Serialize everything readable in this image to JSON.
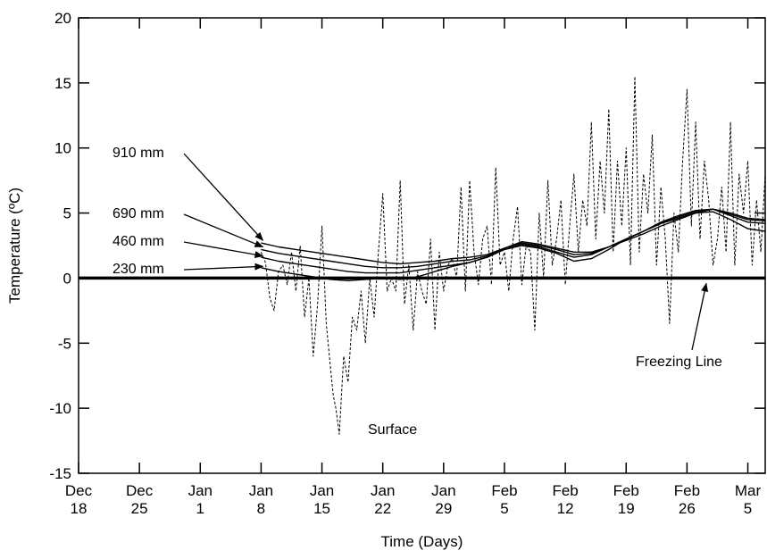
{
  "chart_data": {
    "type": "line",
    "title": "",
    "xlabel": "Time (Days)",
    "ylabel": "Temperature (ºC)",
    "ylim": [
      -15,
      20
    ],
    "yticks": [
      -15,
      -10,
      -5,
      0,
      5,
      10,
      15,
      20
    ],
    "xticks": [
      {
        "day": 0,
        "line1": "Dec",
        "line2": "18"
      },
      {
        "day": 7,
        "line1": "Dec",
        "line2": "25"
      },
      {
        "day": 14,
        "line1": "Jan",
        "line2": "1"
      },
      {
        "day": 21,
        "line1": "Jan",
        "line2": "8"
      },
      {
        "day": 28,
        "line1": "Jan",
        "line2": "15"
      },
      {
        "day": 35,
        "line1": "Jan",
        "line2": "22"
      },
      {
        "day": 42,
        "line1": "Jan",
        "line2": "29"
      },
      {
        "day": 49,
        "line1": "Feb",
        "line2": "5"
      },
      {
        "day": 56,
        "line1": "Feb",
        "line2": "12"
      },
      {
        "day": 63,
        "line1": "Feb",
        "line2": "19"
      },
      {
        "day": 70,
        "line1": "Feb",
        "line2": "26"
      },
      {
        "day": 77,
        "line1": "Mar",
        "line2": "5"
      }
    ],
    "xlim": [
      0,
      79
    ],
    "grid": false,
    "series": [
      {
        "name": "Surface",
        "dashed": true,
        "x": [
          21,
          21.5,
          22,
          22.5,
          23,
          23.5,
          24,
          24.5,
          25,
          25.5,
          26,
          26.5,
          27,
          27.5,
          28,
          28.5,
          29,
          29.3,
          29.6,
          30,
          30.5,
          31,
          31.5,
          32,
          32.5,
          33,
          33.5,
          34,
          34.5,
          35,
          35.5,
          36,
          36.5,
          37,
          37.5,
          38,
          38.5,
          39,
          39.5,
          40,
          40.5,
          41,
          41.5,
          42,
          42.5,
          43,
          43.5,
          44,
          44.5,
          45,
          45.5,
          46,
          46.5,
          47,
          47.5,
          48,
          48.5,
          49,
          49.5,
          50,
          50.5,
          51,
          51.5,
          52,
          52.5,
          53,
          53.5,
          54,
          54.5,
          55,
          55.5,
          56,
          56.5,
          57,
          57.5,
          58,
          58.5,
          59,
          59.5,
          60,
          60.5,
          61,
          61.5,
          62,
          62.5,
          63,
          63.5,
          64,
          64.5,
          65,
          65.5,
          66,
          66.5,
          67,
          67.5,
          68,
          68.5,
          69,
          69.5,
          70,
          70.5,
          71,
          71.5,
          72,
          72.5,
          73,
          73.5,
          74,
          74.5,
          75,
          75.5,
          76,
          76.5,
          77,
          77.5,
          78,
          78.5,
          79
        ],
        "y": [
          2,
          1.2,
          -1.5,
          -2.5,
          0.5,
          1,
          -0.5,
          2,
          -1,
          2.5,
          -3,
          0,
          -6,
          -2,
          4,
          -3.5,
          -7,
          -9,
          -10,
          -12,
          -6,
          -8,
          -3,
          -4,
          -1,
          -5,
          0,
          -3,
          2,
          6.5,
          -1,
          0,
          -1,
          7.5,
          -2,
          1,
          -4,
          0.5,
          -1,
          -2,
          3,
          -4,
          2,
          -1,
          1,
          1.5,
          0,
          7,
          -1,
          7.5,
          2,
          -0.5,
          3,
          4,
          -0.5,
          8.5,
          1,
          2,
          -1,
          3,
          5.5,
          -0.5,
          2.5,
          2,
          -4,
          5,
          0,
          7.5,
          1,
          3,
          6,
          -0.5,
          4,
          8,
          2,
          6,
          4,
          12,
          3,
          9,
          5,
          13,
          2,
          9,
          4,
          10,
          1,
          15.5,
          2,
          8,
          5,
          11,
          1,
          7,
          3,
          -3.5,
          5,
          2,
          9,
          14.5,
          4,
          12,
          3,
          9,
          6,
          1,
          3,
          7,
          2,
          12,
          1,
          8,
          5,
          9,
          1,
          6,
          2,
          8
        ]
      },
      {
        "name": "230 mm",
        "x": [
          21,
          23,
          25,
          27,
          29,
          31,
          33,
          35,
          37,
          39,
          41,
          43,
          45,
          47,
          49,
          51,
          53,
          55,
          57,
          59,
          61,
          63,
          65,
          67,
          69,
          71,
          73,
          75,
          77,
          79
        ],
        "y": [
          0.8,
          0.5,
          0.3,
          0.1,
          -0.1,
          -0.2,
          -0.1,
          0,
          -0.1,
          0.1,
          0.5,
          0.9,
          1.2,
          1.6,
          2.2,
          2.5,
          2.3,
          1.9,
          1.3,
          1.5,
          2.2,
          3,
          3.6,
          4.2,
          4.6,
          5,
          5.1,
          4.5,
          3.8,
          3.6
        ]
      },
      {
        "name": "460 mm",
        "x": [
          21,
          23,
          25,
          27,
          29,
          31,
          33,
          35,
          37,
          39,
          41,
          43,
          45,
          47,
          49,
          51,
          53,
          55,
          57,
          59,
          61,
          63,
          65,
          67,
          69,
          71,
          73,
          75,
          77,
          79
        ],
        "y": [
          1.6,
          1.3,
          1.1,
          0.9,
          0.7,
          0.5,
          0.4,
          0.4,
          0.4,
          0.6,
          0.8,
          1,
          1.2,
          1.6,
          2.2,
          2.6,
          2.4,
          2,
          1.6,
          1.8,
          2.4,
          3,
          3.6,
          4.3,
          4.8,
          5.2,
          5.3,
          4.8,
          4.3,
          4.2
        ]
      },
      {
        "name": "690 mm",
        "x": [
          21,
          23,
          25,
          27,
          29,
          31,
          33,
          35,
          37,
          39,
          41,
          43,
          45,
          47,
          49,
          51,
          53,
          55,
          57,
          59,
          61,
          63,
          65,
          67,
          69,
          71,
          73,
          75,
          77,
          79
        ],
        "y": [
          2.2,
          1.9,
          1.7,
          1.5,
          1.3,
          1.1,
          0.9,
          0.8,
          0.8,
          0.9,
          1.1,
          1.3,
          1.4,
          1.7,
          2.3,
          2.7,
          2.5,
          2.2,
          1.8,
          1.9,
          2.4,
          3,
          3.6,
          4.2,
          4.7,
          5.1,
          5.3,
          4.9,
          4.5,
          4.4
        ]
      },
      {
        "name": "910 mm",
        "x": [
          21,
          23,
          25,
          27,
          29,
          31,
          33,
          35,
          37,
          39,
          41,
          43,
          45,
          47,
          49,
          51,
          53,
          55,
          57,
          59,
          61,
          63,
          65,
          67,
          69,
          71,
          73,
          75,
          77,
          79
        ],
        "y": [
          2.7,
          2.4,
          2.2,
          2,
          1.8,
          1.6,
          1.4,
          1.2,
          1.1,
          1.2,
          1.3,
          1.5,
          1.6,
          1.8,
          2.3,
          2.8,
          2.6,
          2.3,
          2,
          2,
          2.4,
          2.9,
          3.4,
          4,
          4.5,
          5,
          5.3,
          5,
          4.6,
          4.5
        ]
      }
    ],
    "reference_line": {
      "name": "Freezing Line",
      "y": 0
    },
    "annotations": [
      {
        "id": "910",
        "text": "910 mm"
      },
      {
        "id": "690",
        "text": "690 mm"
      },
      {
        "id": "460",
        "text": "460 mm"
      },
      {
        "id": "230",
        "text": "230 mm"
      },
      {
        "id": "surface",
        "text": "Surface"
      },
      {
        "id": "freezing",
        "text": "Freezing Line"
      }
    ]
  }
}
